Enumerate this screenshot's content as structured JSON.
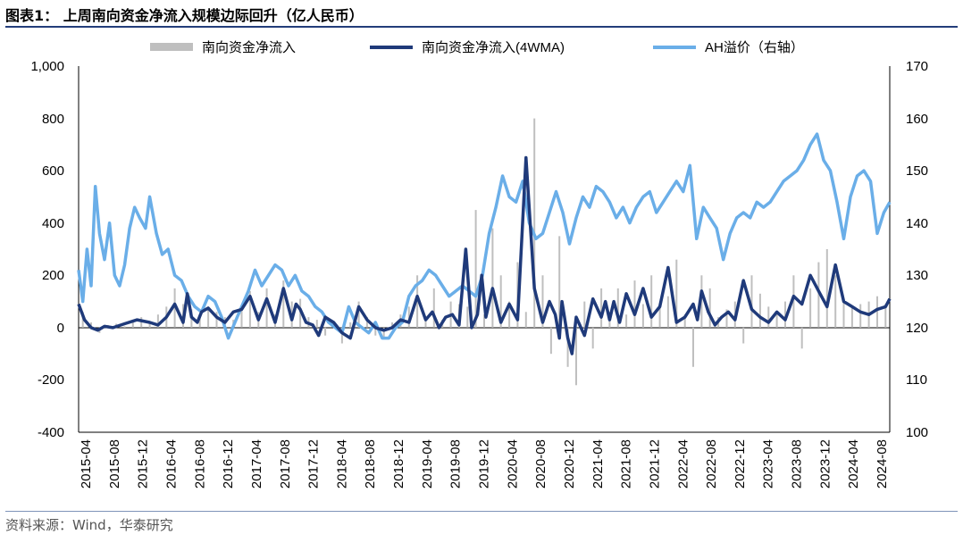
{
  "title": "图表1： 上周南向资金净流入规模边际回升（亿人民币）",
  "source": "资料来源：Wind，华泰研究",
  "colors": {
    "bars": "#bfbfbf",
    "wma": "#1f3a7a",
    "ah": "#6aaee8",
    "rule": "#233d7a"
  },
  "chart_data": {
    "type": "line",
    "legend": [
      "南向资金净流入",
      "南向资金净流入(4WMA)",
      "AH溢价（右轴）"
    ],
    "y_left": {
      "ticks": [
        "1,000",
        "800",
        "600",
        "400",
        "200",
        "0",
        "-200",
        "-400"
      ],
      "range": [
        -400,
        1000
      ]
    },
    "y_right": {
      "ticks": [
        "170",
        "160",
        "150",
        "140",
        "130",
        "120",
        "110",
        "100"
      ],
      "range": [
        100,
        170
      ]
    },
    "x_ticks": [
      "2015-04",
      "2015-08",
      "2015-12",
      "2016-04",
      "2016-08",
      "2016-12",
      "2017-04",
      "2017-08",
      "2017-12",
      "2018-04",
      "2018-08",
      "2018-12",
      "2019-04",
      "2019-08",
      "2019-12",
      "2020-04",
      "2020-08",
      "2020-12",
      "2021-04",
      "2021-08",
      "2021-12",
      "2022-04",
      "2022-08",
      "2022-12",
      "2023-04",
      "2023-08",
      "2023-12",
      "2024-04",
      "2024-08"
    ],
    "x_range": [
      2015.25,
      2024.95
    ],
    "series": [
      {
        "name": "南向资金净流入(4WMA)",
        "axis": "left",
        "x": [
          2015.25,
          2015.32,
          2015.4,
          2015.48,
          2015.56,
          2015.66,
          2015.8,
          2015.95,
          2016.1,
          2016.2,
          2016.3,
          2016.4,
          2016.5,
          2016.55,
          2016.6,
          2016.67,
          2016.72,
          2016.8,
          2016.9,
          2017.0,
          2017.1,
          2017.2,
          2017.3,
          2017.4,
          2017.5,
          2017.6,
          2017.7,
          2017.8,
          2017.85,
          2017.9,
          2017.97,
          2018.05,
          2018.12,
          2018.2,
          2018.3,
          2018.4,
          2018.5,
          2018.6,
          2018.7,
          2018.8,
          2018.9,
          2019.0,
          2019.1,
          2019.2,
          2019.3,
          2019.4,
          2019.48,
          2019.56,
          2019.64,
          2019.72,
          2019.8,
          2019.88,
          2019.95,
          2020.02,
          2020.07,
          2020.12,
          2020.2,
          2020.3,
          2020.4,
          2020.5,
          2020.6,
          2020.7,
          2020.8,
          2020.88,
          2020.95,
          2021.0,
          2021.03,
          2021.06,
          2021.1,
          2021.15,
          2021.2,
          2021.3,
          2021.4,
          2021.5,
          2021.55,
          2021.6,
          2021.65,
          2021.72,
          2021.8,
          2021.9,
          2022.0,
          2022.1,
          2022.2,
          2022.3,
          2022.4,
          2022.5,
          2022.6,
          2022.65,
          2022.7,
          2022.78,
          2022.86,
          2022.94,
          2023.02,
          2023.1,
          2023.2,
          2023.3,
          2023.4,
          2023.5,
          2023.6,
          2023.7,
          2023.8,
          2023.9,
          2024.0,
          2024.1,
          2024.2,
          2024.3,
          2024.4,
          2024.5,
          2024.6,
          2024.7,
          2024.8,
          2024.9,
          2024.95
        ],
        "values": [
          90,
          30,
          0,
          -10,
          5,
          0,
          15,
          30,
          20,
          10,
          40,
          90,
          20,
          130,
          40,
          20,
          60,
          75,
          40,
          20,
          60,
          70,
          120,
          30,
          110,
          20,
          150,
          30,
          90,
          70,
          20,
          10,
          -30,
          40,
          20,
          -20,
          -40,
          80,
          30,
          0,
          -10,
          0,
          30,
          20,
          120,
          30,
          60,
          0,
          40,
          50,
          10,
          300,
          0,
          50,
          200,
          40,
          150,
          20,
          90,
          30,
          650,
          150,
          20,
          100,
          50,
          -40,
          100,
          40,
          -40,
          -100,
          40,
          -30,
          110,
          40,
          100,
          30,
          100,
          20,
          130,
          50,
          150,
          40,
          80,
          230,
          20,
          40,
          90,
          30,
          140,
          60,
          10,
          40,
          60,
          30,
          180,
          70,
          40,
          20,
          60,
          30,
          120,
          90,
          200,
          140,
          80,
          240,
          100,
          80,
          60,
          50,
          70,
          80,
          110
        ]
      },
      {
        "name": "AH溢价（右轴）",
        "axis": "right",
        "x": [
          2015.25,
          2015.3,
          2015.35,
          2015.4,
          2015.45,
          2015.5,
          2015.56,
          2015.62,
          2015.68,
          2015.74,
          2015.8,
          2015.86,
          2015.92,
          2015.98,
          2016.05,
          2016.1,
          2016.18,
          2016.25,
          2016.32,
          2016.4,
          2016.48,
          2016.56,
          2016.64,
          2016.72,
          2016.8,
          2016.88,
          2016.96,
          2017.04,
          2017.12,
          2017.2,
          2017.28,
          2017.36,
          2017.44,
          2017.52,
          2017.6,
          2017.68,
          2017.76,
          2017.84,
          2017.92,
          2018.0,
          2018.08,
          2018.16,
          2018.24,
          2018.32,
          2018.4,
          2018.48,
          2018.56,
          2018.64,
          2018.72,
          2018.8,
          2018.88,
          2018.96,
          2019.04,
          2019.12,
          2019.2,
          2019.28,
          2019.36,
          2019.44,
          2019.52,
          2019.6,
          2019.68,
          2019.76,
          2019.84,
          2019.92,
          2020.0,
          2020.08,
          2020.16,
          2020.24,
          2020.32,
          2020.4,
          2020.48,
          2020.56,
          2020.64,
          2020.72,
          2020.8,
          2020.88,
          2020.96,
          2021.04,
          2021.12,
          2021.2,
          2021.28,
          2021.36,
          2021.44,
          2021.52,
          2021.6,
          2021.68,
          2021.76,
          2021.84,
          2021.92,
          2022.0,
          2022.08,
          2022.16,
          2022.24,
          2022.32,
          2022.4,
          2022.48,
          2022.56,
          2022.64,
          2022.72,
          2022.8,
          2022.88,
          2022.96,
          2023.04,
          2023.12,
          2023.2,
          2023.28,
          2023.36,
          2023.44,
          2023.52,
          2023.6,
          2023.68,
          2023.76,
          2023.84,
          2023.92,
          2024.0,
          2024.08,
          2024.16,
          2024.24,
          2024.32,
          2024.4,
          2024.48,
          2024.56,
          2024.64,
          2024.72,
          2024.8,
          2024.88,
          2024.95
        ],
        "values": [
          131,
          125,
          135,
          128,
          147,
          138,
          133,
          140,
          130,
          128,
          132,
          139,
          143,
          141,
          139,
          145,
          138,
          134,
          135,
          130,
          129,
          126,
          124,
          123,
          126,
          125,
          122,
          118,
          121,
          124,
          127,
          131,
          128,
          130,
          132,
          131,
          128,
          130,
          127,
          126,
          124,
          123,
          121,
          120,
          119,
          124,
          121,
          120,
          119,
          121,
          118,
          118,
          120,
          121,
          126,
          128,
          129,
          131,
          130,
          128,
          126,
          127,
          128,
          127,
          126,
          130,
          138,
          143,
          149,
          145,
          144,
          148,
          140,
          137,
          138,
          142,
          146,
          142,
          136,
          141,
          145,
          143,
          147,
          146,
          144,
          141,
          143,
          140,
          143,
          145,
          146,
          142,
          144,
          146,
          148,
          146,
          151,
          137,
          143,
          141,
          139,
          133,
          138,
          141,
          142,
          141,
          144,
          143,
          144,
          146,
          148,
          149,
          150,
          152,
          155,
          157,
          152,
          150,
          144,
          137,
          145,
          149,
          150,
          148,
          138,
          142,
          144
        ]
      }
    ],
    "bars": {
      "name": "南向资金净流入",
      "axis": "left",
      "x": [
        2015.3,
        2015.4,
        2015.5,
        2015.6,
        2015.7,
        2015.8,
        2015.9,
        2016.0,
        2016.1,
        2016.2,
        2016.3,
        2016.4,
        2016.5,
        2016.6,
        2016.7,
        2016.8,
        2016.9,
        2017.0,
        2017.1,
        2017.2,
        2017.3,
        2017.4,
        2017.5,
        2017.6,
        2017.7,
        2017.8,
        2017.9,
        2018.0,
        2018.1,
        2018.2,
        2018.3,
        2018.4,
        2018.5,
        2018.6,
        2018.7,
        2018.8,
        2018.9,
        2019.0,
        2019.1,
        2019.2,
        2019.3,
        2019.4,
        2019.5,
        2019.6,
        2019.7,
        2019.8,
        2019.9,
        2020.0,
        2020.1,
        2020.2,
        2020.3,
        2020.4,
        2020.5,
        2020.6,
        2020.7,
        2020.8,
        2020.9,
        2021.0,
        2021.1,
        2021.2,
        2021.3,
        2021.4,
        2021.5,
        2021.6,
        2021.7,
        2021.8,
        2021.9,
        2022.0,
        2022.1,
        2022.2,
        2022.3,
        2022.4,
        2022.5,
        2022.6,
        2022.7,
        2022.8,
        2022.9,
        2023.0,
        2023.1,
        2023.2,
        2023.3,
        2023.4,
        2023.5,
        2023.6,
        2023.7,
        2023.8,
        2023.9,
        2024.0,
        2024.1,
        2024.2,
        2024.3,
        2024.4,
        2024.5,
        2024.6,
        2024.7,
        2024.8,
        2024.9
      ],
      "values": [
        60,
        20,
        -20,
        10,
        15,
        5,
        30,
        40,
        20,
        50,
        80,
        150,
        90,
        70,
        40,
        80,
        60,
        40,
        30,
        80,
        140,
        60,
        150,
        50,
        180,
        100,
        110,
        40,
        30,
        -30,
        20,
        -60,
        20,
        100,
        40,
        -30,
        -40,
        20,
        50,
        80,
        200,
        40,
        150,
        30,
        100,
        90,
        80,
        450,
        50,
        380,
        200,
        100,
        250,
        60,
        800,
        200,
        -100,
        350,
        -150,
        -220,
        100,
        -80,
        150,
        60,
        150,
        50,
        180,
        90,
        200,
        80,
        120,
        260,
        50,
        -150,
        200,
        150,
        40,
        70,
        100,
        -60,
        200,
        130,
        80,
        60,
        100,
        200,
        -80,
        150,
        250,
        300,
        200,
        100,
        80,
        90,
        100,
        120,
        90
      ]
    }
  }
}
